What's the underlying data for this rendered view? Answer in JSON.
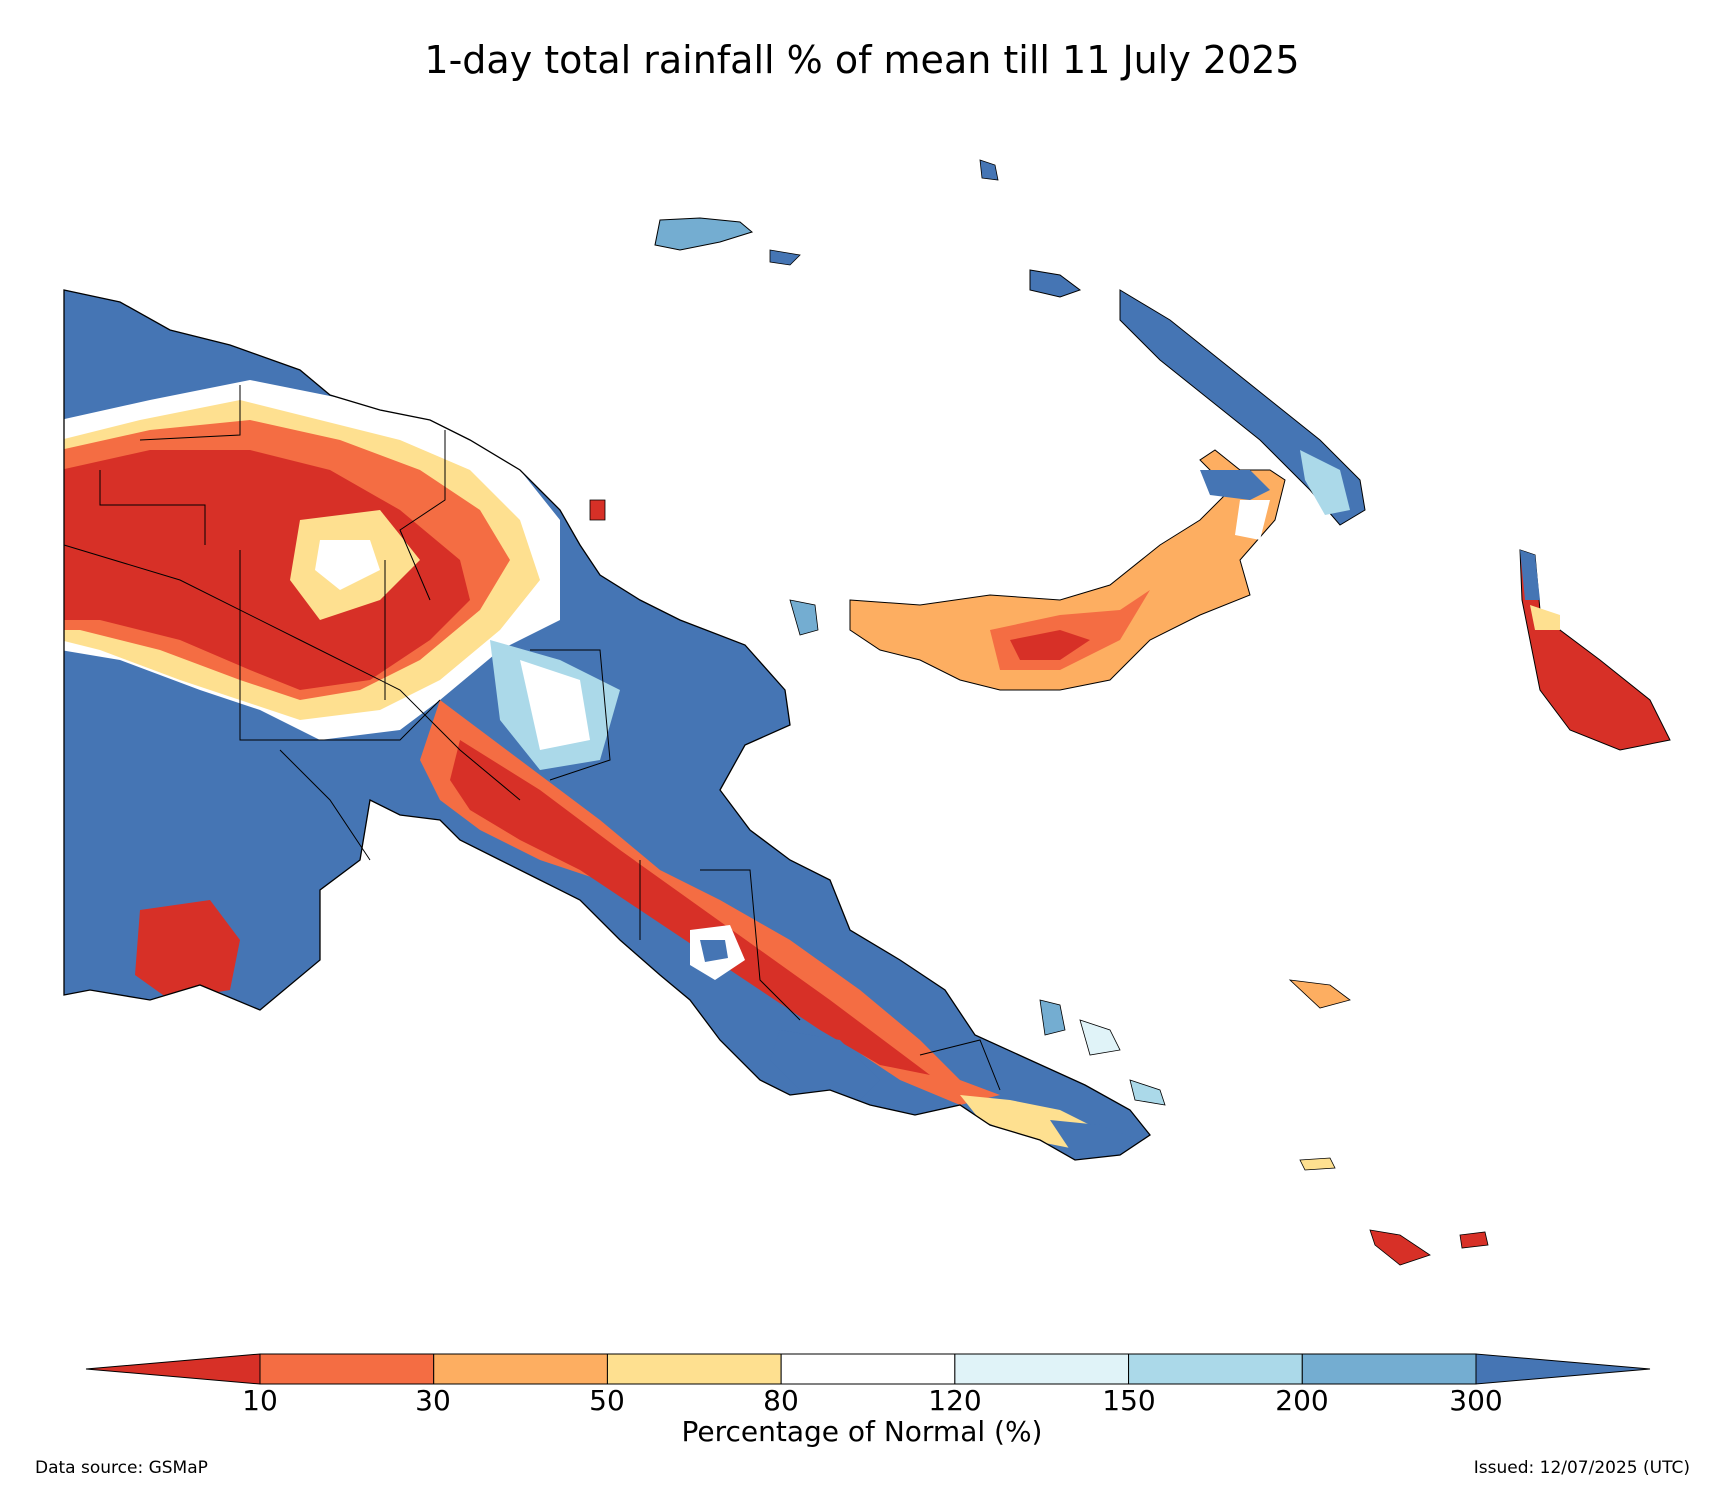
{
  "title": "1-day total rainfall % of mean till 11 July 2025",
  "colorbar": {
    "label": "Percentage of Normal (%)",
    "ticks": [
      "10",
      "30",
      "50",
      "80",
      "120",
      "150",
      "200",
      "300"
    ],
    "colors": [
      "#d73027",
      "#f46d43",
      "#fdae61",
      "#fee090",
      "#ffffff",
      "#e0f3f8",
      "#abd9e9",
      "#74add1",
      "#4575b4"
    ]
  },
  "footer": {
    "source": "Data source: GSMaP",
    "issued": "Issued: 12/07/2025 (UTC)"
  }
}
